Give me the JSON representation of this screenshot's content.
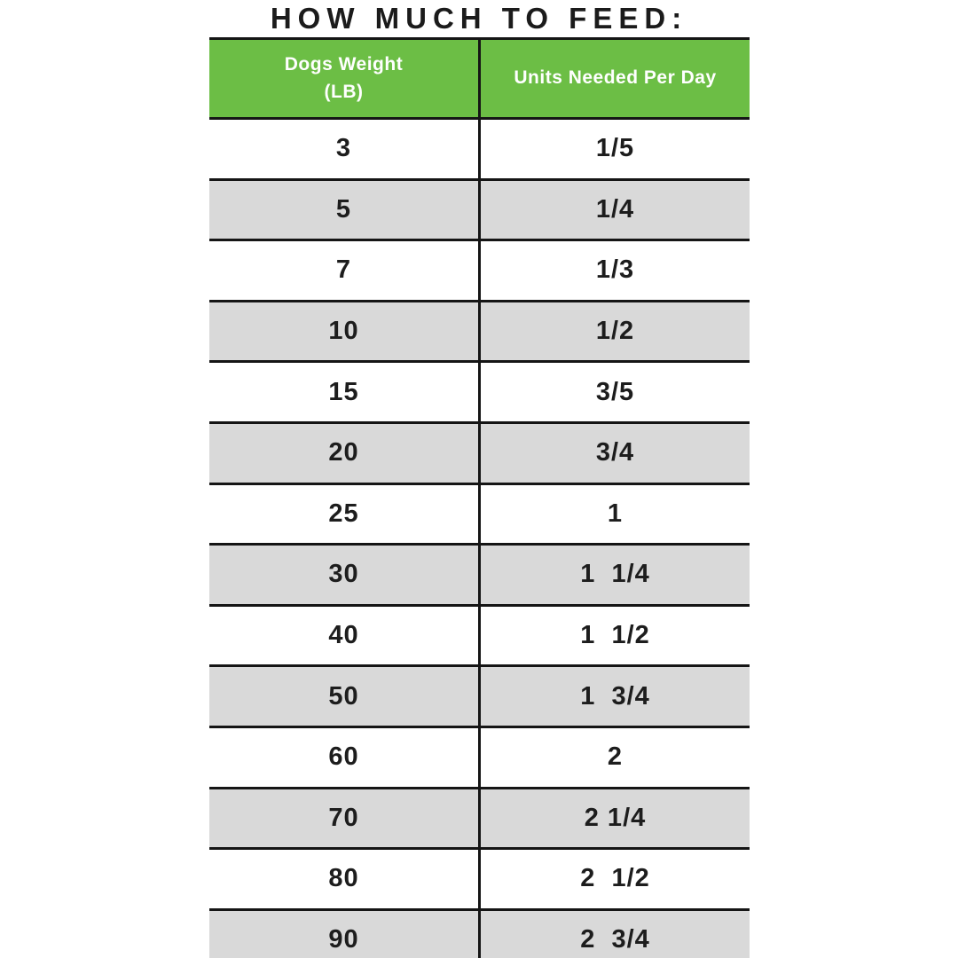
{
  "title": "HOW MUCH TO FEED:",
  "table": {
    "header": {
      "weight_label_line1": "Dogs Weight",
      "weight_label_line2": "(LB)",
      "units_label": "Units Needed Per Day"
    },
    "rows": [
      {
        "weight": "3",
        "units": "1/5"
      },
      {
        "weight": "5",
        "units": "1/4"
      },
      {
        "weight": "7",
        "units": "1/3"
      },
      {
        "weight": "10",
        "units": "1/2"
      },
      {
        "weight": "15",
        "units": "3/5"
      },
      {
        "weight": "20",
        "units": "3/4"
      },
      {
        "weight": "25",
        "units": "1"
      },
      {
        "weight": "30",
        "units": "1  1/4"
      },
      {
        "weight": "40",
        "units": "1  1/2"
      },
      {
        "weight": "50",
        "units": "1  3/4"
      },
      {
        "weight": "60",
        "units": "2"
      },
      {
        "weight": "70",
        "units": "2 1/4"
      },
      {
        "weight": "80",
        "units": "2  1/2"
      },
      {
        "weight": "90",
        "units": "2  3/4"
      }
    ]
  },
  "colors": {
    "header_green": "#6cbe45",
    "alt_row_gray": "#d9d9d9",
    "border_black": "#151515"
  },
  "chart_data": {
    "type": "table",
    "title": "HOW MUCH TO FEED:",
    "columns": [
      "Dogs Weight (LB)",
      "Units Needed Per Day"
    ],
    "rows": [
      [
        3,
        "1/5"
      ],
      [
        5,
        "1/4"
      ],
      [
        7,
        "1/3"
      ],
      [
        10,
        "1/2"
      ],
      [
        15,
        "3/5"
      ],
      [
        20,
        "3/4"
      ],
      [
        25,
        "1"
      ],
      [
        30,
        "1 1/4"
      ],
      [
        40,
        "1 1/2"
      ],
      [
        50,
        "1 3/4"
      ],
      [
        60,
        "2"
      ],
      [
        70,
        "2 1/4"
      ],
      [
        80,
        "2 1/2"
      ],
      [
        90,
        "2 3/4"
      ]
    ],
    "layout": {
      "alternating_row_shading": true,
      "header_background": "#6cbe45",
      "last_row_clipped": true
    }
  }
}
